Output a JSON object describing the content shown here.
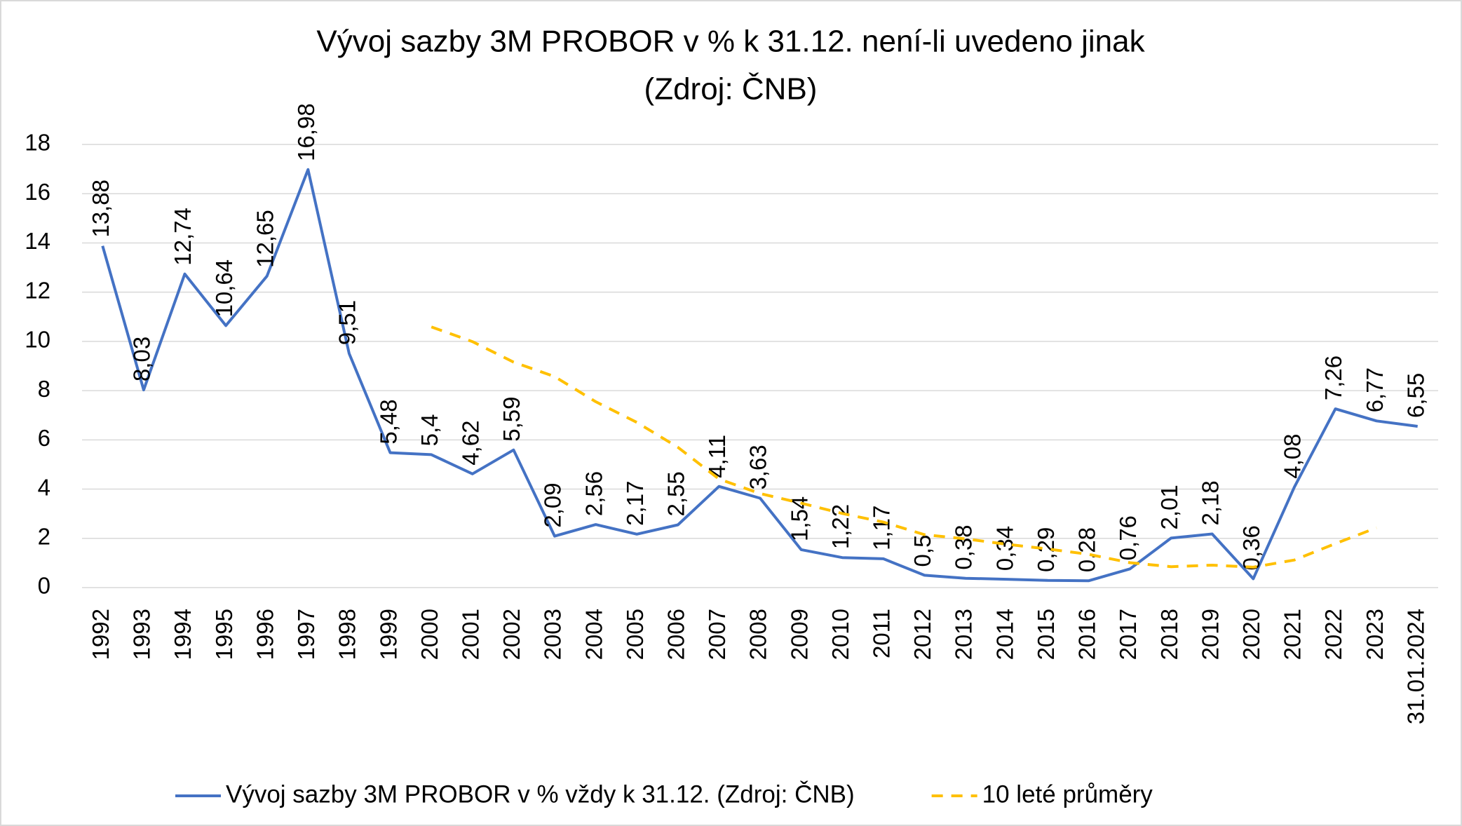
{
  "chart_data": {
    "type": "line",
    "title": "Vývoj sazby 3M PROBOR v % k 31.12. není-li uvedeno jinak",
    "subtitle": "(Zdroj: ČNB)",
    "categories": [
      "1992",
      "1993",
      "1994",
      "1995",
      "1996",
      "1997",
      "1998",
      "1999",
      "2000",
      "2001",
      "2002",
      "2003",
      "2004",
      "2005",
      "2006",
      "2007",
      "2008",
      "2009",
      "2010",
      "2011",
      "2012",
      "2013",
      "2014",
      "2015",
      "2016",
      "2017",
      "2018",
      "2019",
      "2020",
      "2021",
      "2022",
      "2023",
      "31.01.2024"
    ],
    "series": [
      {
        "name": "Vývoj sazby 3M PROBOR v % vždy k 31.12. (Zdroj: ČNB)",
        "color": "#4472c4",
        "dashed": false,
        "values": [
          13.88,
          8.03,
          12.74,
          10.64,
          12.65,
          16.98,
          9.51,
          5.48,
          5.4,
          4.62,
          5.59,
          2.09,
          2.56,
          2.17,
          2.55,
          4.11,
          3.63,
          1.54,
          1.22,
          1.17,
          0.5,
          0.38,
          0.34,
          0.29,
          0.28,
          0.76,
          2.01,
          2.18,
          0.36,
          4.08,
          7.26,
          6.77,
          6.55
        ],
        "value_labels": [
          "13,88",
          "8,03",
          "12,74",
          "10,64",
          "12,65",
          "16,98",
          "9,51",
          "5,48",
          "5,4",
          "4,62",
          "5,59",
          "2,09",
          "2,56",
          "2,17",
          "2,55",
          "4,11",
          "3,63",
          "1,54",
          "1,22",
          "1,17",
          "0,5",
          "0,38",
          "0,34",
          "0,29",
          "0,28",
          "0,76",
          "2,01",
          "2,18",
          "0,36",
          "4,08",
          "7,26",
          "6,77",
          "6,55"
        ]
      },
      {
        "name": "10 leté průměry",
        "color": "#ffc000",
        "dashed": true,
        "values": [
          null,
          null,
          null,
          null,
          null,
          null,
          null,
          null,
          10.59,
          9.99,
          9.16,
          8.57,
          7.55,
          6.71,
          5.7,
          4.41,
          3.82,
          3.43,
          3.01,
          2.66,
          2.15,
          1.98,
          1.76,
          1.57,
          1.35,
          1.01,
          0.85,
          0.91,
          0.83,
          1.12,
          1.79,
          2.43,
          null
        ]
      }
    ],
    "ylim": [
      0,
      18
    ],
    "yticks": [
      0,
      2,
      4,
      6,
      8,
      10,
      12,
      14,
      16,
      18
    ],
    "grid": true,
    "legend": "bottom"
  }
}
